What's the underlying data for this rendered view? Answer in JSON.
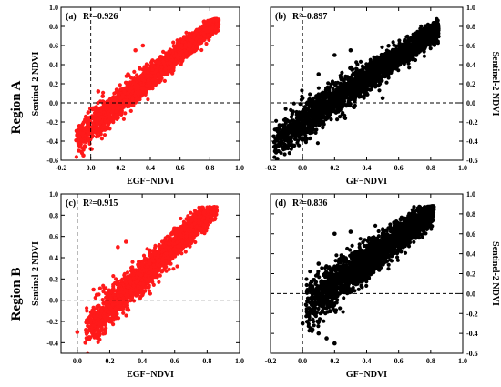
{
  "regions": [
    "Region A",
    "Region B"
  ],
  "chart_data": [
    {
      "type": "scatter",
      "panel": "(a)",
      "r2": "R²=0.926",
      "r2_value": 0.926,
      "xlabel": "EGF−NDVI",
      "ylabel": "Sentinel-2 NDVI",
      "xlim": [
        -0.2,
        1.0
      ],
      "ylim": [
        -0.6,
        1.0
      ],
      "xticks": [
        -0.2,
        0.0,
        0.2,
        0.4,
        0.6,
        0.8,
        1.0
      ],
      "yticks": [
        -0.6,
        -0.4,
        -0.2,
        0.0,
        0.2,
        0.4,
        0.6,
        0.8,
        1.0
      ],
      "ticklabel_format": "-0.1,0.0,0.1...",
      "xticklabels": [
        "-0.2",
        "0.0",
        "0.2",
        "0.4",
        "0.6",
        "0.8",
        "1.0"
      ],
      "yaxis_side": "left",
      "color": "#ff1a1a",
      "refline_x": 0,
      "refline_y": 0,
      "cloud": {
        "xmin": -0.1,
        "xmax": 0.86,
        "slope": 1.3,
        "intercept": -0.25,
        "spread": 0.07
      },
      "outliers": [
        [
          -0.08,
          -0.5
        ],
        [
          -0.05,
          -0.55
        ],
        [
          0.0,
          -0.48
        ],
        [
          0.02,
          -0.3
        ],
        [
          0.05,
          0.12
        ],
        [
          0.08,
          0.07
        ],
        [
          0.1,
          0.0
        ],
        [
          0.15,
          -0.05
        ],
        [
          0.2,
          0.05
        ],
        [
          0.25,
          0.3
        ],
        [
          0.3,
          0.55
        ],
        [
          0.35,
          0.6
        ]
      ]
    },
    {
      "type": "scatter",
      "panel": "(b)",
      "r2": "R²=0.897",
      "r2_value": 0.897,
      "xlabel": "GF−NDVI",
      "ylabel": "Sentinel-2 NDVI",
      "xlim": [
        -0.2,
        1.0
      ],
      "ylim": [
        -0.6,
        1.0
      ],
      "xticks": [
        -0.2,
        0.0,
        0.2,
        0.4,
        0.6,
        0.8,
        1.0
      ],
      "yticks": [
        -0.6,
        -0.4,
        -0.2,
        0.0,
        0.2,
        0.4,
        0.6,
        0.8,
        1.0
      ],
      "xticklabels": [
        "-0.2",
        "0.0",
        "0.2",
        "0.4",
        "0.6",
        "0.8",
        "1.0"
      ],
      "yaxis_side": "right",
      "color": "#000000",
      "refline_x": 0,
      "refline_y": 0,
      "cloud": {
        "xmin": -0.18,
        "xmax": 0.85,
        "slope": 1.15,
        "intercept": -0.2,
        "spread": 0.09
      },
      "outliers": [
        [
          -0.18,
          -0.35
        ],
        [
          -0.15,
          -0.45
        ],
        [
          -0.12,
          -0.3
        ],
        [
          -0.05,
          -0.2
        ],
        [
          0.0,
          0.05
        ],
        [
          0.05,
          0.0
        ],
        [
          0.1,
          0.3
        ],
        [
          0.2,
          0.5
        ],
        [
          0.3,
          0.55
        ],
        [
          0.5,
          0.05
        ],
        [
          0.4,
          0.1
        ]
      ]
    },
    {
      "type": "scatter",
      "panel": "(c)",
      "r2": "R²=0.915",
      "r2_value": 0.915,
      "xlabel": "EGF−NDVI",
      "ylabel": "Sentinel-2 NDVI",
      "xlim": [
        -0.1,
        1.0
      ],
      "ylim": [
        -0.5,
        1.0
      ],
      "xticks": [
        0.0,
        0.2,
        0.4,
        0.6,
        0.8,
        1.0
      ],
      "yticks": [
        -0.4,
        -0.2,
        0.0,
        0.2,
        0.4,
        0.6,
        0.8,
        1.0
      ],
      "xticklabels": [
        "0.0",
        "0.2",
        "0.4",
        "0.6",
        "0.8",
        "1.0"
      ],
      "yaxis_side": "left",
      "color": "#ff1a1a",
      "refline_x": 0,
      "refline_y": 0,
      "cloud": {
        "xmin": 0.05,
        "xmax": 0.86,
        "slope": 1.45,
        "intercept": -0.35,
        "spread": 0.08
      },
      "outliers": [
        [
          0.0,
          -0.3
        ],
        [
          0.05,
          -0.4
        ],
        [
          0.08,
          -0.35
        ],
        [
          0.1,
          0.1
        ],
        [
          0.12,
          0.05
        ],
        [
          0.15,
          -0.1
        ],
        [
          0.2,
          -0.2
        ],
        [
          0.3,
          0.55
        ],
        [
          0.25,
          0.5
        ]
      ]
    },
    {
      "type": "scatter",
      "panel": "(d)",
      "r2": "R²=0.836",
      "r2_value": 0.836,
      "xlabel": "GF−NDVI",
      "ylabel": "Sentinel-2 NDVI",
      "xlim": [
        -0.2,
        1.0
      ],
      "ylim": [
        -0.6,
        1.0
      ],
      "xticks": [
        -0.2,
        0.0,
        0.2,
        0.4,
        0.6,
        0.8,
        1.0
      ],
      "yticks": [
        -0.6,
        -0.4,
        -0.2,
        0.0,
        0.2,
        0.4,
        0.6,
        0.8,
        1.0
      ],
      "xticklabels": [
        "-0.2",
        "0.0",
        "0.2",
        "0.4",
        "0.6",
        "0.8",
        "1.0"
      ],
      "yaxis_side": "right",
      "color": "#000000",
      "refline_x": 0,
      "refline_y": 0,
      "cloud": {
        "xmin": 0.02,
        "xmax": 0.82,
        "slope": 1.2,
        "intercept": -0.15,
        "spread": 0.1
      },
      "outliers": [
        [
          0.0,
          -0.3
        ],
        [
          0.05,
          -0.35
        ],
        [
          0.1,
          -0.4
        ],
        [
          0.2,
          -0.5
        ],
        [
          0.15,
          -0.45
        ],
        [
          0.1,
          0.3
        ],
        [
          0.2,
          0.6
        ],
        [
          0.3,
          0.62
        ],
        [
          0.05,
          0.1
        ]
      ]
    }
  ]
}
